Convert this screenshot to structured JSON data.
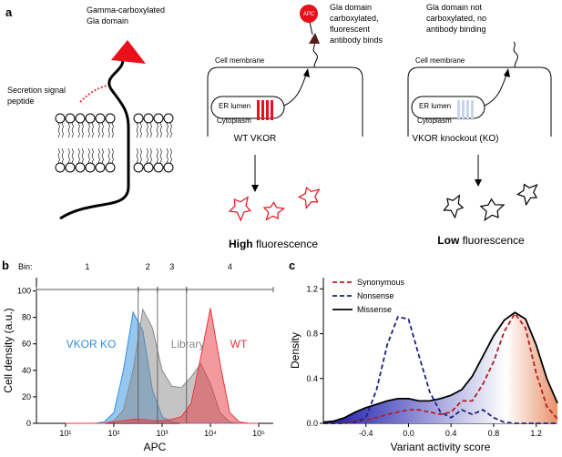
{
  "panel_a": {
    "letter": "a",
    "gla_label": [
      "Gamma-carboxylated",
      "Gla domain"
    ],
    "signal_label": [
      "Secretion signal",
      "peptide"
    ],
    "antibody": "APC",
    "wt_note": [
      "Gla domain",
      "carboxylated,",
      "fluorescent",
      "antibody binds"
    ],
    "ko_note": [
      "Gla domain not",
      "carboxylated, no",
      "antibody binding"
    ],
    "wt_cell": {
      "membrane": "Cell membrane",
      "lumen": "ER lumen",
      "cytoplasm": "Cytoplasm",
      "name": "WT VKOR",
      "result": [
        "High",
        "fluorescence"
      ]
    },
    "ko_cell": {
      "membrane": "Cell membrane",
      "lumen": "ER lumen",
      "cytoplasm": "Cytoplasm",
      "name": "VKOR knockout (KO)",
      "result": [
        "Low",
        "fluorescence"
      ]
    }
  },
  "chart_data": [
    {
      "type": "area",
      "letter": "b",
      "xlabel": "APC",
      "ylabel": "Cell density (a.u.)",
      "xscale": "log",
      "xlim": [
        2.5,
        200000
      ],
      "xticks": [
        {
          "value": 10,
          "label": "10¹"
        },
        {
          "value": 100,
          "label": "10²"
        },
        {
          "value": 1000,
          "label": "10³"
        },
        {
          "value": 10000,
          "label": "10⁴"
        },
        {
          "value": 100000,
          "label": "10⁵"
        }
      ],
      "ylim": [
        0,
        110
      ],
      "yticks": [
        0,
        20,
        40,
        60,
        80,
        100
      ],
      "x": [
        10,
        15.8,
        25.1,
        39.8,
        63.1,
        100,
        158,
        251,
        398,
        631,
        1000,
        1585,
        2512,
        3981,
        6310,
        10000,
        15849,
        25119,
        39811,
        63096,
        100000
      ],
      "series": [
        {
          "name": "VKOR KO",
          "color": "#2f8ee0",
          "values": [
            0,
            0,
            0,
            0,
            1,
            8,
            40,
            84,
            70,
            25,
            5,
            1,
            0,
            0,
            0,
            0,
            0,
            0,
            0,
            0,
            0
          ]
        },
        {
          "name": "Library",
          "color": "#8a8a8a",
          "values": [
            0,
            0,
            0,
            0,
            0,
            2,
            10,
            40,
            86,
            72,
            40,
            28,
            27,
            35,
            45,
            30,
            8,
            1,
            0,
            0,
            0
          ]
        },
        {
          "name": "WT",
          "color": "#e8363d",
          "values": [
            0,
            0,
            0,
            0,
            0,
            1,
            2,
            3,
            3,
            2,
            2,
            3,
            5,
            15,
            50,
            87,
            45,
            8,
            1,
            0,
            0
          ]
        }
      ],
      "gate_title": "Bin:",
      "gates": [
        {
          "name": "1",
          "range": [
            2.5,
            320
          ]
        },
        {
          "name": "2",
          "range": [
            320,
            800
          ]
        },
        {
          "name": "3",
          "range": [
            800,
            3200
          ]
        },
        {
          "name": "4",
          "range": [
            3200,
            200000
          ]
        }
      ]
    },
    {
      "type": "line",
      "letter": "c",
      "xlabel": "Variant activity score",
      "ylabel": "Density",
      "xlim": [
        -0.8,
        1.4
      ],
      "xticks": [
        -0.4,
        {
          "value": 0,
          "label": "0.0"
        },
        0.4,
        0.8,
        1.2
      ],
      "ylim": [
        0,
        1.3
      ],
      "yticks": [
        {
          "value": 0,
          "label": "0.0"
        },
        0.4,
        0.8,
        1.2
      ],
      "legend": "upper left",
      "x": [
        -0.8,
        -0.7,
        -0.6,
        -0.5,
        -0.4,
        -0.3,
        -0.2,
        -0.1,
        0,
        0.1,
        0.2,
        0.3,
        0.4,
        0.5,
        0.6,
        0.7,
        0.8,
        0.9,
        1.0,
        1.1,
        1.2,
        1.3,
        1.4
      ],
      "series": [
        {
          "name": "Synonymous",
          "color": "#b71c1c",
          "dash": true,
          "values": [
            0,
            0,
            0.01,
            0.02,
            0.03,
            0.05,
            0.08,
            0.1,
            0.12,
            0.12,
            0.1,
            0.08,
            0.1,
            0.2,
            0.2,
            0.35,
            0.55,
            0.82,
            0.98,
            0.85,
            0.45,
            0.15,
            0.04
          ]
        },
        {
          "name": "Nonsense",
          "color": "#1a237e",
          "dash": true,
          "values": [
            0,
            0,
            0,
            0.01,
            0.05,
            0.3,
            0.7,
            0.95,
            0.93,
            0.6,
            0.28,
            0.1,
            0.05,
            0.12,
            0.08,
            0.12,
            0.05,
            0.01,
            0,
            0,
            0,
            0,
            0
          ]
        },
        {
          "name": "Missense",
          "color": "#000000",
          "dash": false,
          "fill_colors": [
            "#1414a8",
            "#ffffff",
            "#e8926a"
          ],
          "values": [
            0.01,
            0.02,
            0.05,
            0.1,
            0.14,
            0.17,
            0.2,
            0.22,
            0.22,
            0.2,
            0.2,
            0.22,
            0.25,
            0.3,
            0.42,
            0.6,
            0.78,
            0.92,
            0.99,
            0.93,
            0.7,
            0.4,
            0.18
          ]
        }
      ]
    }
  ]
}
